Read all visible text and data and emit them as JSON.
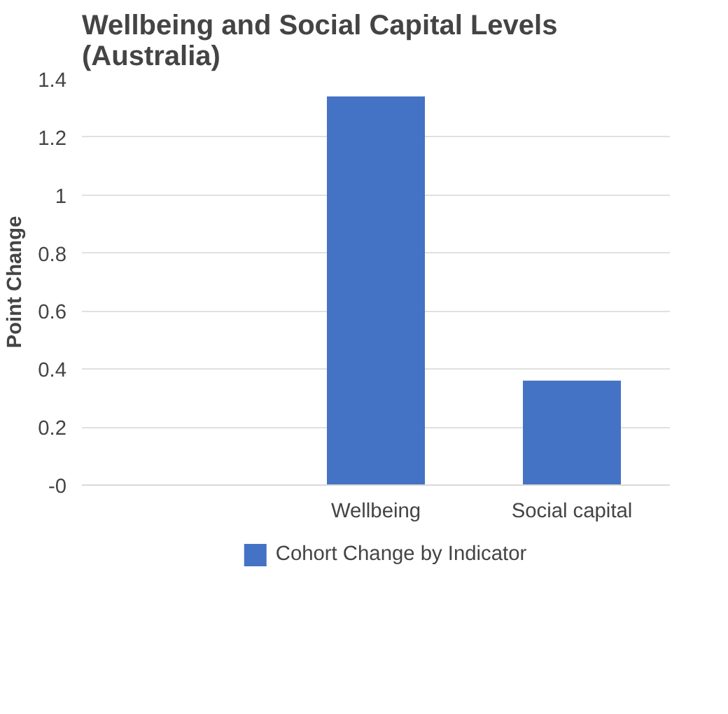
{
  "chart_data": {
    "type": "bar",
    "title": "Wellbeing and Social Capital Levels (Australia)",
    "ylabel": "Point Change",
    "categories": [
      null,
      "Wellbeing",
      "Social capital"
    ],
    "series": [
      {
        "name": "Cohort Change by Indicator",
        "color": "#4472c4",
        "values": [
          null,
          1.34,
          0.36
        ]
      }
    ],
    "ylim": [
      0,
      1.4
    ],
    "yticks": [
      {
        "value": 0,
        "label": "-0"
      },
      0.2,
      0.4,
      0.6,
      0.8,
      1,
      1.2,
      1.4
    ],
    "grid": "y",
    "legend": "bottom"
  }
}
